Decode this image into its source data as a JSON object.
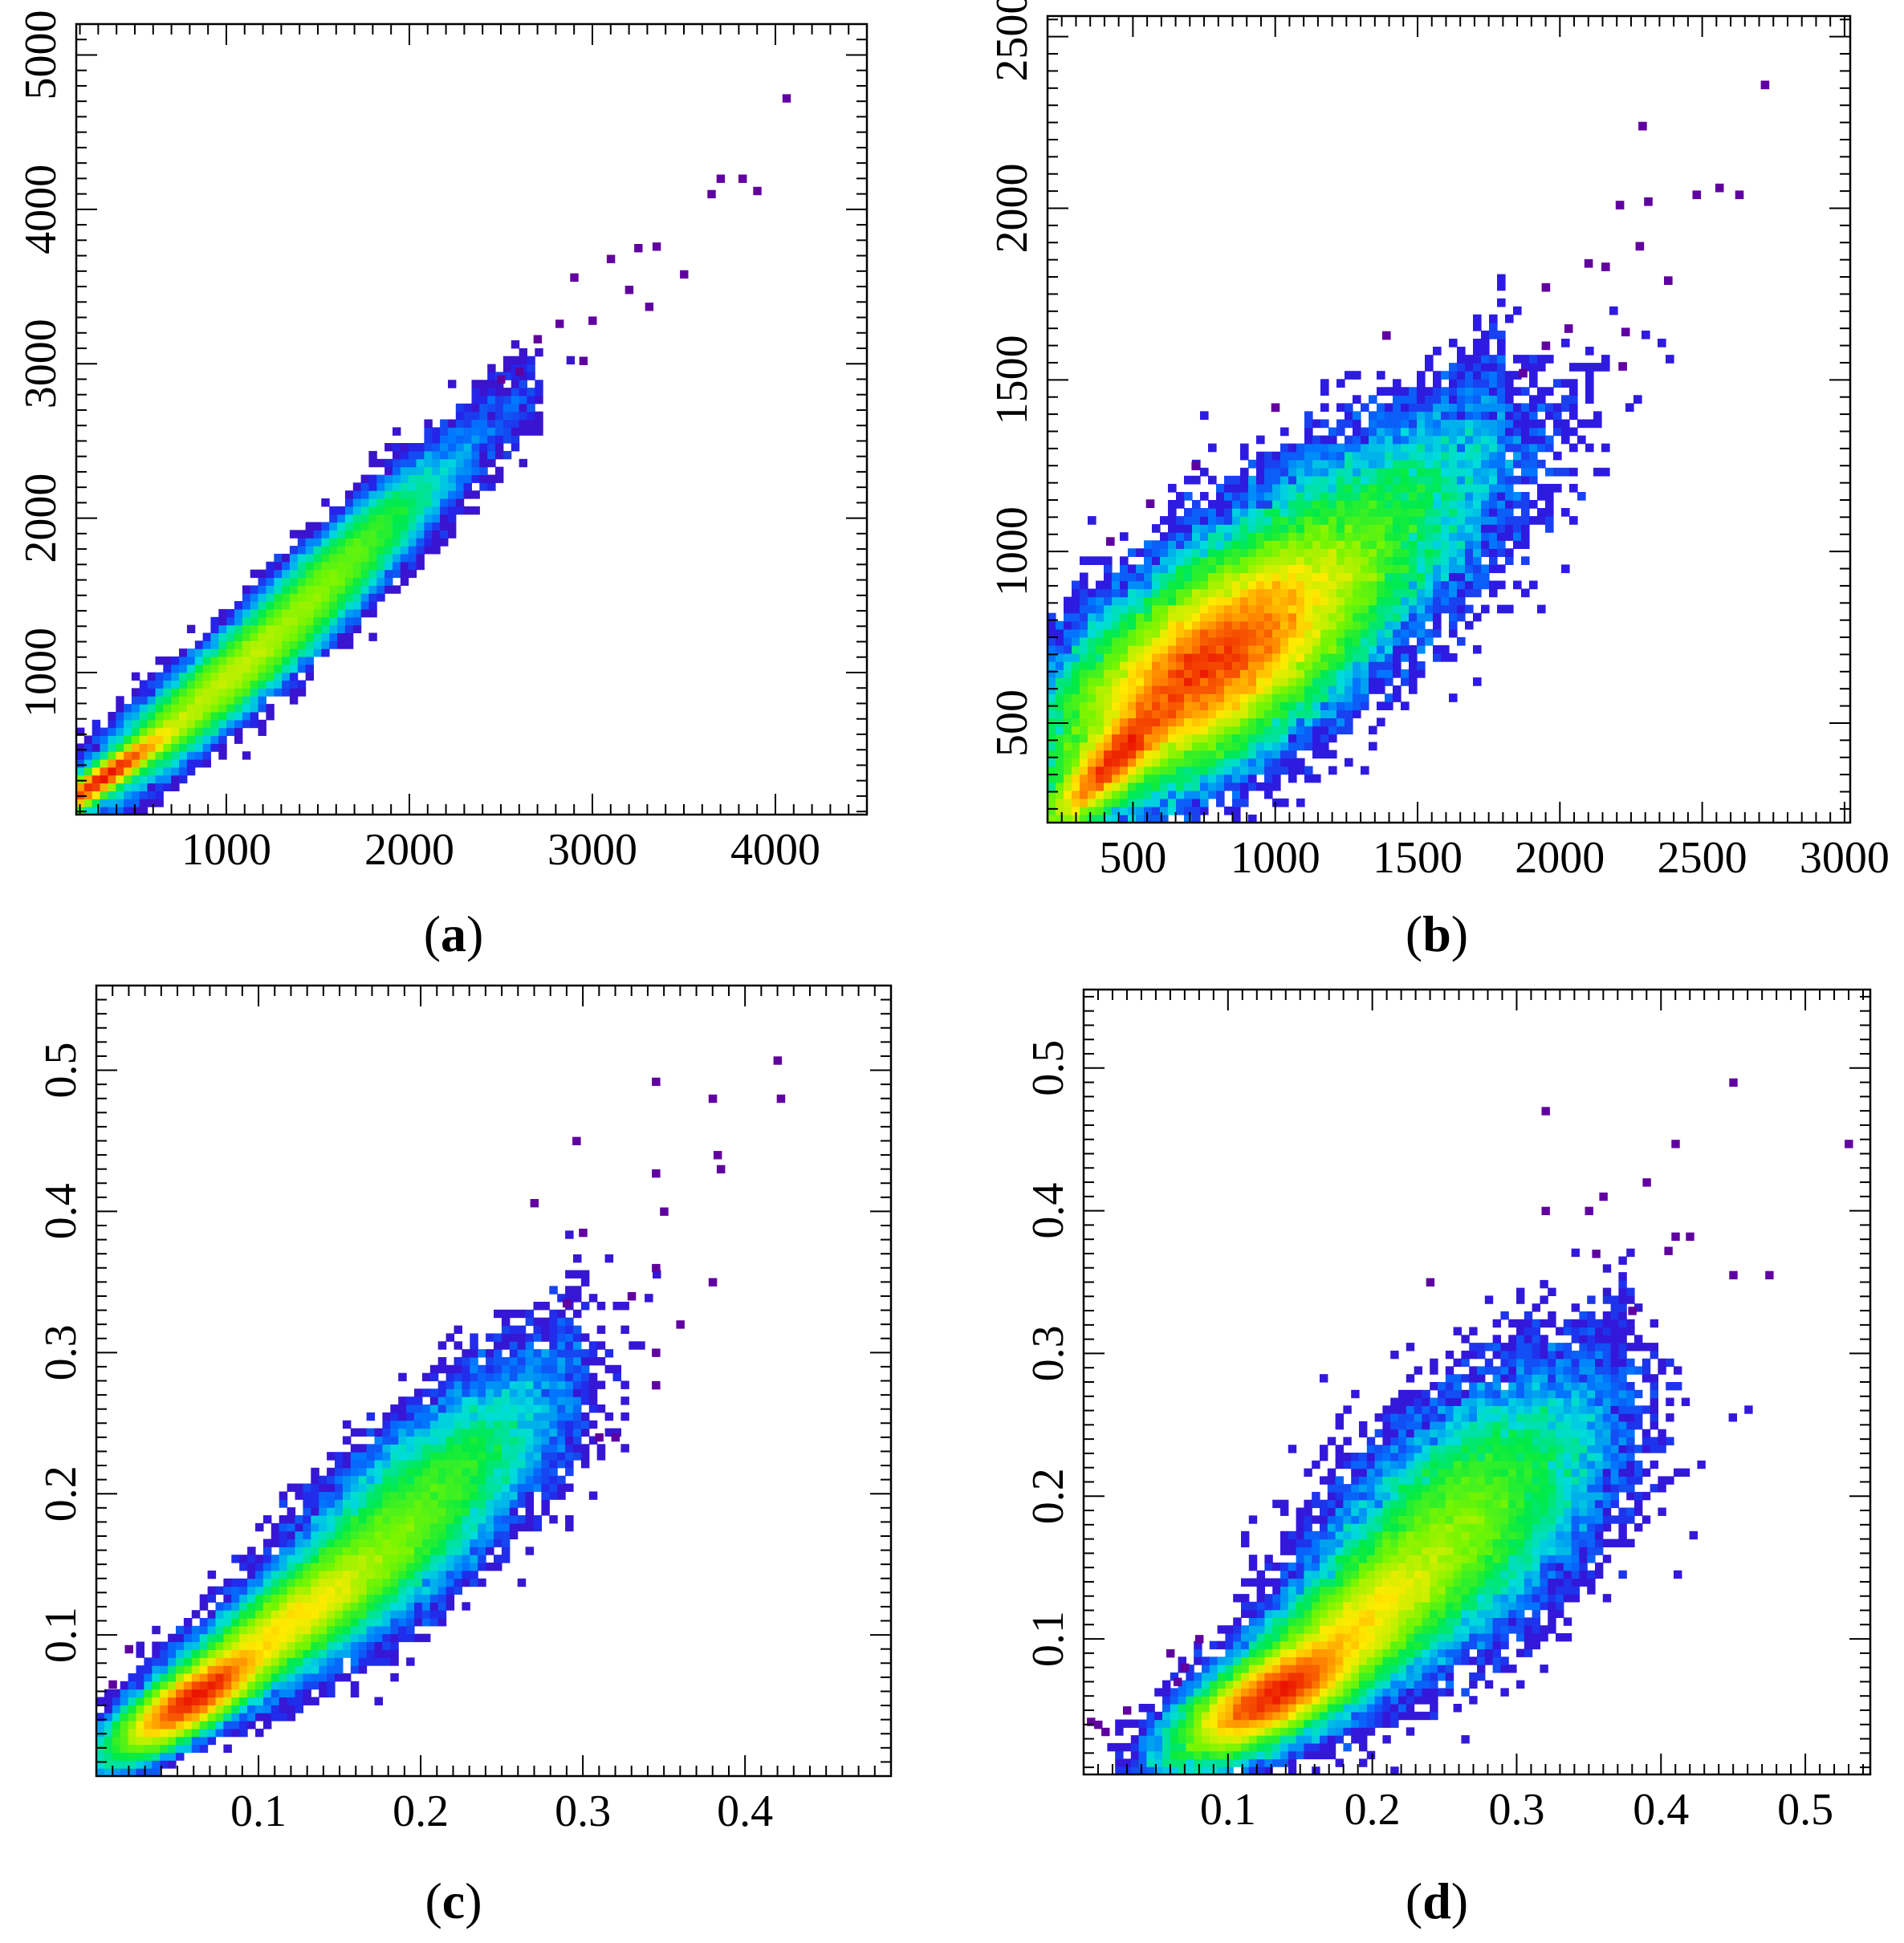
{
  "chart_data": [
    {
      "id": "a",
      "type": "heatmap",
      "caption": "a",
      "title": "",
      "xlabel": "",
      "ylabel": "",
      "xlim": [
        180,
        4500
      ],
      "ylim": [
        80,
        5200
      ],
      "xticks": [
        1000,
        2000,
        3000,
        4000
      ],
      "xtick_labels": [
        "1000",
        "2000",
        "3000",
        "4000"
      ],
      "yticks": [
        1000,
        2000,
        3000,
        4000,
        5000
      ],
      "ytick_labels": [
        "1000",
        "2000",
        "3000",
        "4000",
        "5000"
      ],
      "x_minor_step": 100,
      "y_minor_step": 100,
      "grid": false,
      "density": {
        "cluster_components": [
          {
            "x": 330,
            "y": 320,
            "sx": 190,
            "sy": 160,
            "rho": 0.96,
            "w": 0.42
          },
          {
            "x": 950,
            "y": 900,
            "sx": 330,
            "sy": 330,
            "rho": 0.93,
            "w": 0.36
          },
          {
            "x": 1550,
            "y": 1600,
            "sx": 300,
            "sy": 340,
            "rho": 0.92,
            "w": 0.22
          }
        ],
        "tail_band": {
          "x_from": 1800,
          "x_to": 2700,
          "slope": 1.08,
          "intercept": -40,
          "spread": 160
        },
        "outliers": [
          [
            4060,
            4720
          ],
          [
            3650,
            4100
          ],
          [
            3700,
            4200
          ],
          [
            3820,
            4200
          ],
          [
            3900,
            4120
          ],
          [
            3250,
            3750
          ],
          [
            3350,
            3760
          ],
          [
            3100,
            3680
          ],
          [
            3200,
            3480
          ],
          [
            2900,
            3560
          ],
          [
            3000,
            3280
          ],
          [
            3310,
            3370
          ],
          [
            3500,
            3580
          ],
          [
            2700,
            3160
          ],
          [
            2820,
            3260
          ],
          [
            2600,
            2950
          ],
          [
            2500,
            2900
          ],
          [
            2950,
            3020
          ]
        ]
      }
    },
    {
      "id": "b",
      "type": "heatmap",
      "caption": "b",
      "title": "",
      "xlabel": "",
      "ylabel": "",
      "xlim": [
        200,
        3020
      ],
      "ylim": [
        210,
        2560
      ],
      "xticks": [
        500,
        1000,
        1500,
        2000,
        2500,
        3000
      ],
      "xtick_labels": [
        "500",
        "1000",
        "1500",
        "2000",
        "2500",
        "3000"
      ],
      "yticks": [
        500,
        1000,
        1500,
        2000,
        2500
      ],
      "ytick_labels": [
        "500",
        "1000",
        "1500",
        "2000",
        "2500"
      ],
      "x_minor_step": 50,
      "y_minor_step": 50,
      "grid": false,
      "density": {
        "cluster_components": [
          {
            "x": 760,
            "y": 660,
            "sx": 260,
            "sy": 170,
            "rho": 0.62,
            "w": 0.62
          },
          {
            "x": 1050,
            "y": 880,
            "sx": 340,
            "sy": 220,
            "rho": 0.72,
            "w": 0.26
          },
          {
            "x": 420,
            "y": 380,
            "sx": 120,
            "sy": 100,
            "rho": 0.85,
            "w": 0.12
          }
        ],
        "tail_band": {
          "x_from": 1300,
          "x_to": 1800,
          "slope": 0.7,
          "intercept": 190,
          "spread": 110
        },
        "outliers": [
          [
            2720,
            2360
          ],
          [
            2290,
            2240
          ],
          [
            2560,
            2060
          ],
          [
            2630,
            2040
          ],
          [
            2480,
            2040
          ],
          [
            2210,
            2010
          ],
          [
            2310,
            2020
          ],
          [
            2280,
            1890
          ],
          [
            2160,
            1830
          ],
          [
            2100,
            1840
          ],
          [
            2380,
            1790
          ],
          [
            1950,
            1770
          ],
          [
            2030,
            1650
          ],
          [
            2230,
            1640
          ],
          [
            2220,
            1540
          ],
          [
            1950,
            1600
          ],
          [
            1390,
            1630
          ],
          [
            1000,
            1420
          ],
          [
            720,
            1250
          ],
          [
            420,
            1030
          ],
          [
            560,
            1140
          ],
          [
            1870,
            1520
          ]
        ]
      }
    },
    {
      "id": "c",
      "type": "heatmap",
      "caption": "c",
      "title": "",
      "xlabel": "",
      "ylabel": "",
      "xlim": [
        0.0,
        0.49
      ],
      "ylim": [
        0.0,
        0.56
      ],
      "xticks": [
        0.1,
        0.2,
        0.3,
        0.4
      ],
      "xtick_labels": [
        "0.1",
        "0.2",
        "0.3",
        "0.4"
      ],
      "yticks": [
        0.1,
        0.2,
        0.3,
        0.4,
        0.5
      ],
      "ytick_labels": [
        "0.1",
        "0.2",
        "0.3",
        "0.4",
        "0.5"
      ],
      "x_minor_step": 0.01,
      "y_minor_step": 0.01,
      "grid": false,
      "density": {
        "cluster_components": [
          {
            "x": 0.06,
            "y": 0.055,
            "sx": 0.022,
            "sy": 0.018,
            "rho": 0.8,
            "w": 0.42
          },
          {
            "x": 0.12,
            "y": 0.11,
            "sx": 0.035,
            "sy": 0.03,
            "rho": 0.85,
            "w": 0.33
          },
          {
            "x": 0.19,
            "y": 0.18,
            "sx": 0.04,
            "sy": 0.045,
            "rho": 0.78,
            "w": 0.25
          }
        ],
        "tail_band": {
          "x_from": 0.22,
          "x_to": 0.3,
          "slope": 0.95,
          "intercept": 0.01,
          "spread": 0.035
        },
        "outliers": [
          [
            0.42,
            0.507
          ],
          [
            0.422,
            0.48
          ],
          [
            0.38,
            0.48
          ],
          [
            0.345,
            0.492
          ],
          [
            0.383,
            0.44
          ],
          [
            0.385,
            0.43
          ],
          [
            0.345,
            0.427
          ],
          [
            0.35,
            0.4
          ],
          [
            0.296,
            0.45
          ],
          [
            0.27,
            0.406
          ],
          [
            0.3,
            0.385
          ],
          [
            0.38,
            0.35
          ],
          [
            0.345,
            0.36
          ],
          [
            0.33,
            0.34
          ],
          [
            0.36,
            0.32
          ],
          [
            0.345,
            0.3
          ],
          [
            0.345,
            0.277
          ],
          [
            0.31,
            0.24
          ],
          [
            0.32,
            0.24
          ],
          [
            0.29,
            0.335
          ],
          [
            0.02,
            0.09
          ],
          [
            0.01,
            0.065
          ]
        ]
      }
    },
    {
      "id": "d",
      "type": "heatmap",
      "caption": "d",
      "title": "",
      "xlabel": "",
      "ylabel": "",
      "xlim": [
        0.0,
        0.545
      ],
      "ylim": [
        0.005,
        0.555
      ],
      "xticks": [
        0.1,
        0.2,
        0.3,
        0.4,
        0.5
      ],
      "xtick_labels": [
        "0.1",
        "0.2",
        "0.3",
        "0.4",
        "0.5"
      ],
      "yticks": [
        0.1,
        0.2,
        0.3,
        0.4,
        0.5
      ],
      "ytick_labels": [
        "0.1",
        "0.2",
        "0.3",
        "0.4",
        "0.5"
      ],
      "x_minor_step": 0.01,
      "y_minor_step": 0.01,
      "grid": false,
      "density": {
        "cluster_components": [
          {
            "x": 0.13,
            "y": 0.06,
            "sx": 0.03,
            "sy": 0.02,
            "rho": 0.7,
            "w": 0.4
          },
          {
            "x": 0.19,
            "y": 0.11,
            "sx": 0.04,
            "sy": 0.035,
            "rho": 0.75,
            "w": 0.33
          },
          {
            "x": 0.26,
            "y": 0.18,
            "sx": 0.045,
            "sy": 0.045,
            "rho": 0.55,
            "w": 0.27
          }
        ],
        "tail_band": {
          "x_from": 0.3,
          "x_to": 0.38,
          "slope": 0.6,
          "intercept": 0.05,
          "spread": 0.04
        },
        "outliers": [
          [
            0.53,
            0.447
          ],
          [
            0.45,
            0.49
          ],
          [
            0.41,
            0.447
          ],
          [
            0.32,
            0.47
          ],
          [
            0.39,
            0.42
          ],
          [
            0.42,
            0.382
          ],
          [
            0.41,
            0.382
          ],
          [
            0.405,
            0.372
          ],
          [
            0.36,
            0.41
          ],
          [
            0.35,
            0.4
          ],
          [
            0.32,
            0.4
          ],
          [
            0.45,
            0.355
          ],
          [
            0.475,
            0.355
          ],
          [
            0.38,
            0.33
          ],
          [
            0.355,
            0.37
          ],
          [
            0.005,
            0.042
          ],
          [
            0.01,
            0.04
          ],
          [
            0.015,
            0.035
          ],
          [
            0.03,
            0.05
          ],
          [
            0.06,
            0.09
          ],
          [
            0.065,
            0.07
          ],
          [
            0.07,
            0.08
          ],
          [
            0.08,
            0.1
          ],
          [
            0.24,
            0.35
          ]
        ]
      }
    }
  ]
}
